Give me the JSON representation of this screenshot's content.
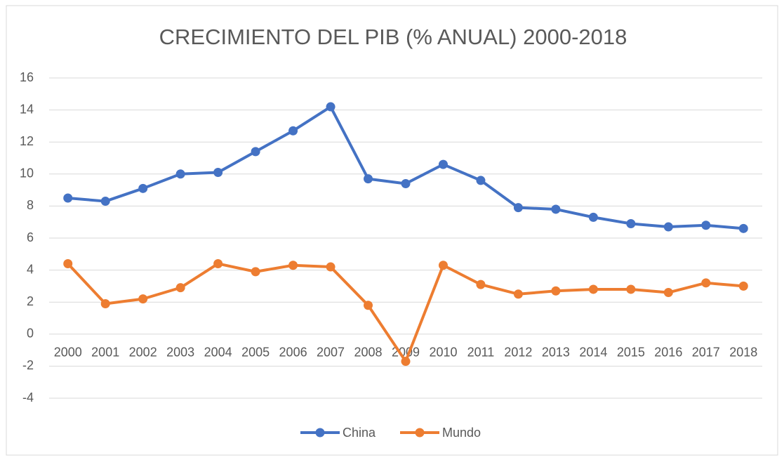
{
  "chart_data": {
    "type": "line",
    "title": "CRECIMIENTO DEL PIB (% ANUAL) 2000-2018",
    "categories": [
      "2000",
      "2001",
      "2002",
      "2003",
      "2004",
      "2005",
      "2006",
      "2007",
      "2008",
      "2009",
      "2010",
      "2011",
      "2012",
      "2013",
      "2014",
      "2015",
      "2016",
      "2017",
      "2018"
    ],
    "series": [
      {
        "name": "China",
        "color": "#4472c4",
        "values": [
          8.5,
          8.3,
          9.1,
          10.0,
          10.1,
          11.4,
          12.7,
          14.2,
          9.7,
          9.4,
          10.6,
          9.6,
          7.9,
          7.8,
          7.3,
          6.9,
          6.7,
          6.8,
          6.6
        ]
      },
      {
        "name": "Mundo",
        "color": "#ed7d31",
        "values": [
          4.4,
          1.9,
          2.2,
          2.9,
          4.4,
          3.9,
          4.3,
          4.2,
          1.8,
          -1.7,
          4.3,
          3.1,
          2.5,
          2.7,
          2.8,
          2.8,
          2.6,
          3.2,
          3.0
        ]
      }
    ],
    "ylim": [
      -4,
      16
    ],
    "yticks": [
      -4,
      -2,
      0,
      2,
      4,
      6,
      8,
      10,
      12,
      14,
      16
    ],
    "grid": true,
    "legend": "bottom"
  }
}
